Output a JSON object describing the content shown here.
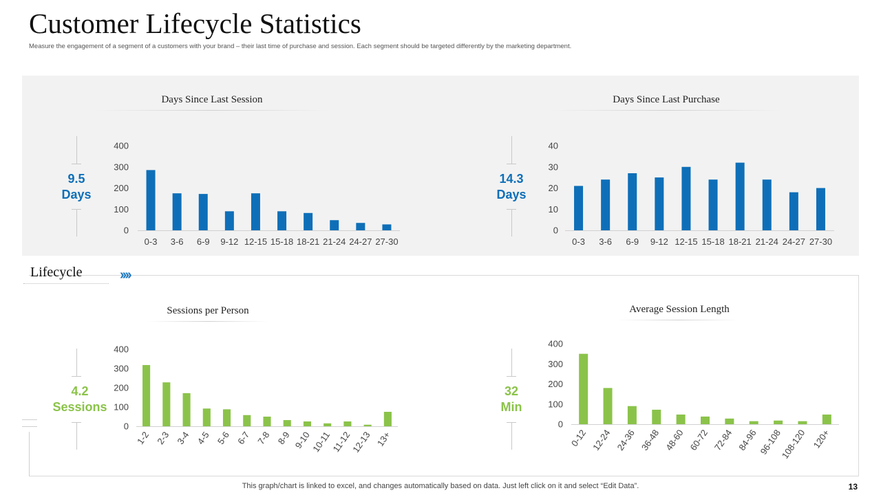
{
  "slide": {
    "title": "Customer Lifecycle Statistics",
    "subtitle": "Measure the engagement of a segment of a customers with your brand – their last time of purchase and session. Each segment should be targeted differently by the marketing department.",
    "section_label": "Lifecycle",
    "section_chevrons": "››››",
    "footer_note": "This graph/chart is linked to excel,  and changes automatically based on data. Just left click on it and select “Edit Data”.",
    "page_number": "13"
  },
  "colors": {
    "blue": "#0e6fb8",
    "green": "#8bc34a",
    "panel_bg": "#f2f2f2"
  },
  "kpis": {
    "session": {
      "value": "9.5",
      "unit": "Days"
    },
    "purchase": {
      "value": "14.3",
      "unit": "Days"
    },
    "sessions_per_person": {
      "value": "4.2",
      "unit": "Sessions"
    },
    "session_length": {
      "value": "32",
      "unit": "Min"
    }
  },
  "chart_data": [
    {
      "id": "days-since-last-session",
      "type": "bar",
      "title": "Days Since Last Session",
      "color": "#0e6fb8",
      "categories": [
        "0-3",
        "3-6",
        "6-9",
        "9-12",
        "12-15",
        "15-18",
        "18-21",
        "21-24",
        "24-27",
        "27-30"
      ],
      "values": [
        285,
        175,
        172,
        90,
        175,
        90,
        82,
        48,
        35,
        28
      ],
      "ylim": [
        0,
        400
      ],
      "yticks": [
        0,
        100,
        200,
        300,
        400
      ],
      "rotate_labels": false
    },
    {
      "id": "days-since-last-purchase",
      "type": "bar",
      "title": "Days Since Last Purchase",
      "color": "#0e6fb8",
      "categories": [
        "0-3",
        "3-6",
        "6-9",
        "9-12",
        "12-15",
        "15-18",
        "18-21",
        "21-24",
        "24-27",
        "27-30"
      ],
      "values": [
        21,
        24,
        27,
        25,
        30,
        24,
        32,
        24,
        18,
        20
      ],
      "ylim": [
        0,
        40
      ],
      "yticks": [
        0,
        10,
        20,
        30,
        40
      ],
      "rotate_labels": false
    },
    {
      "id": "sessions-per-person",
      "type": "bar",
      "title": "Sessions per Person",
      "color": "#8bc34a",
      "categories": [
        "1-2",
        "2-3",
        "3-4",
        "4-5",
        "5-6",
        "6-7",
        "7-8",
        "8-9",
        "9-10",
        "10-11",
        "11-12",
        "12-13",
        "13+"
      ],
      "values": [
        318,
        228,
        172,
        92,
        88,
        58,
        50,
        32,
        25,
        15,
        25,
        8,
        75
      ],
      "ylim": [
        0,
        400
      ],
      "yticks": [
        0,
        100,
        200,
        300,
        400
      ],
      "rotate_labels": true
    },
    {
      "id": "average-session-length",
      "type": "bar",
      "title": "Average Session Length",
      "color": "#8bc34a",
      "categories": [
        "0-12",
        "12-24",
        "24-36",
        "36-48",
        "48-60",
        "60-72",
        "72-84",
        "84-96",
        "96-108",
        "108-120",
        "120+"
      ],
      "values": [
        350,
        180,
        90,
        72,
        48,
        38,
        28,
        15,
        18,
        15,
        48
      ],
      "ylim": [
        0,
        400
      ],
      "yticks": [
        0,
        100,
        200,
        300,
        400
      ],
      "rotate_labels": true
    }
  ]
}
